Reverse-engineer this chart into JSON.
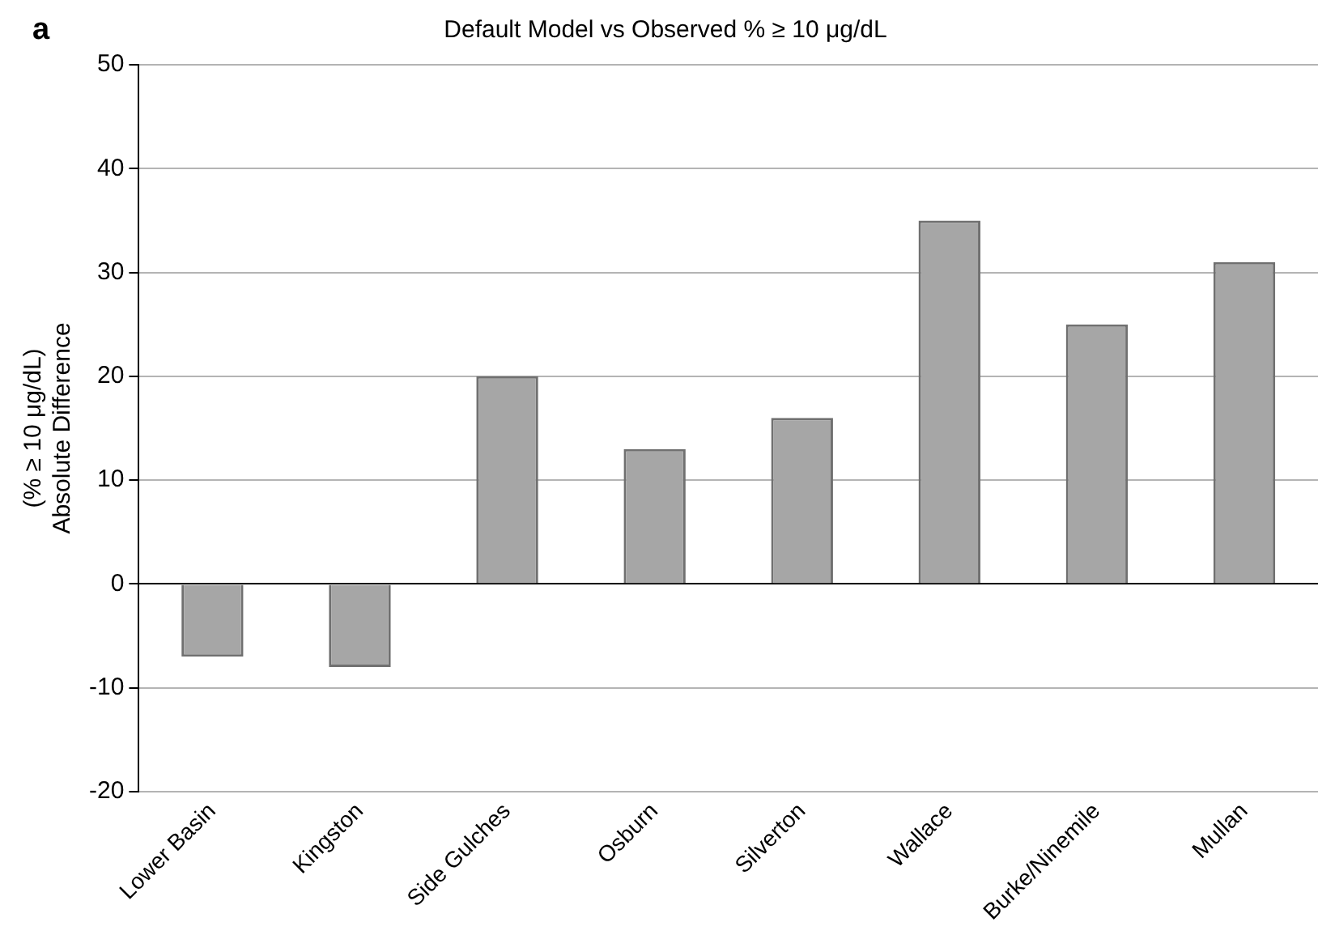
{
  "chart_data": {
    "type": "bar",
    "title": "Default Model vs Observed % ≥ 10 μg/dL",
    "ylabel": "(% ≥ 10 μg/dL)\nAbsolute Difference",
    "annotations": [
      "a"
    ],
    "categories": [
      "Lower Basin",
      "Kingston",
      "Side Gulches",
      "Osburn",
      "Silverton",
      "Wallace",
      "Burke/Ninemile",
      "Mullan"
    ],
    "values": [
      -7,
      -8,
      20,
      13,
      16,
      35,
      25,
      31
    ],
    "color": "#a6a6a6",
    "ylim": [
      -20,
      50
    ],
    "yticks": [
      -20,
      -10,
      0,
      10,
      20,
      30,
      40,
      50
    ],
    "grid": "y",
    "legend": false
  }
}
